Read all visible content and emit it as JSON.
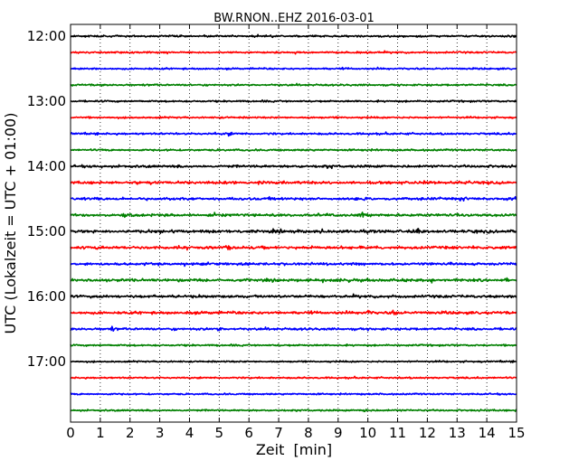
{
  "chart_data": {
    "type": "line",
    "title": "BW.RNON..EHZ 2016-03-01",
    "xlabel": "Zeit  [min]",
    "ylabel": "UTC (Lokalzeit = UTC + 01:00)",
    "xlim": [
      0,
      15
    ],
    "xticks": [
      "0",
      "1",
      "2",
      "3",
      "4",
      "5",
      "6",
      "7",
      "8",
      "9",
      "10",
      "11",
      "12",
      "13",
      "14",
      "15"
    ],
    "ytick_labels": [
      "12:00",
      "13:00",
      "14:00",
      "15:00",
      "16:00",
      "17:00"
    ],
    "grid": "vertical dotted lines at each minute",
    "trace_interval_minutes": 15,
    "series_colors": [
      "#000000",
      "#ff0000",
      "#0000ff",
      "#008000"
    ],
    "traces": [
      {
        "start": "12:00",
        "color": "#000000",
        "activity": 0.6
      },
      {
        "start": "12:15",
        "color": "#ff0000",
        "activity": 0.5
      },
      {
        "start": "12:30",
        "color": "#0000ff",
        "activity": 0.5
      },
      {
        "start": "12:45",
        "color": "#008000",
        "activity": 0.6
      },
      {
        "start": "13:00",
        "color": "#000000",
        "activity": 0.5
      },
      {
        "start": "13:15",
        "color": "#ff0000",
        "activity": 0.5
      },
      {
        "start": "13:30",
        "color": "#0000ff",
        "activity": 0.7
      },
      {
        "start": "13:45",
        "color": "#008000",
        "activity": 0.6
      },
      {
        "start": "14:00",
        "color": "#000000",
        "activity": 1.2
      },
      {
        "start": "14:15",
        "color": "#ff0000",
        "activity": 1.3
      },
      {
        "start": "14:30",
        "color": "#0000ff",
        "activity": 1.3
      },
      {
        "start": "14:45",
        "color": "#008000",
        "activity": 1.2
      },
      {
        "start": "15:00",
        "color": "#000000",
        "activity": 1.5
      },
      {
        "start": "15:15",
        "color": "#ff0000",
        "activity": 1.4
      },
      {
        "start": "15:30",
        "color": "#0000ff",
        "activity": 1.2
      },
      {
        "start": "15:45",
        "color": "#008000",
        "activity": 1.4
      },
      {
        "start": "16:00",
        "color": "#000000",
        "activity": 1.3
      },
      {
        "start": "16:15",
        "color": "#ff0000",
        "activity": 1.3
      },
      {
        "start": "16:30",
        "color": "#0000ff",
        "activity": 1.1
      },
      {
        "start": "16:45",
        "color": "#008000",
        "activity": 0.5
      },
      {
        "start": "17:00",
        "color": "#000000",
        "activity": 0.4
      },
      {
        "start": "17:15",
        "color": "#ff0000",
        "activity": 0.4
      },
      {
        "start": "17:30",
        "color": "#0000ff",
        "activity": 0.4
      },
      {
        "start": "17:45",
        "color": "#008000",
        "activity": 0.5
      }
    ],
    "events": [
      {
        "trace": 6,
        "minute": 5.3,
        "amp": 3
      },
      {
        "trace": 11,
        "minute": 1.9,
        "amp": 6
      },
      {
        "trace": 11,
        "minute": 9.8,
        "amp": 4
      },
      {
        "trace": 10,
        "minute": 13.2,
        "amp": 4
      },
      {
        "trace": 9,
        "minute": 13.3,
        "amp": 4
      },
      {
        "trace": 12,
        "minute": 11.7,
        "amp": 4
      },
      {
        "trace": 13,
        "minute": 5.3,
        "amp": 4
      },
      {
        "trace": 17,
        "minute": 10.9,
        "amp": 6
      },
      {
        "trace": 17,
        "minute": 10.0,
        "amp": 4
      },
      {
        "trace": 18,
        "minute": 5.0,
        "amp": 4
      },
      {
        "trace": 18,
        "minute": 1.4,
        "amp": 3
      },
      {
        "trace": 23,
        "minute": 9.9,
        "amp": 3
      }
    ]
  }
}
